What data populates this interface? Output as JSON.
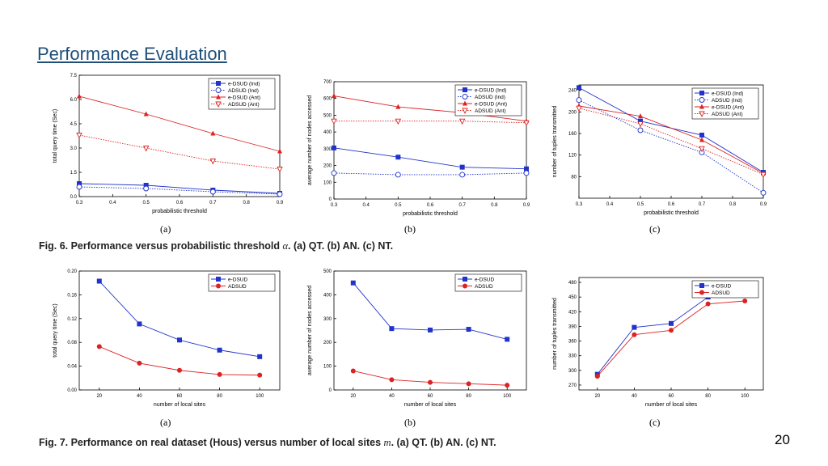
{
  "slide": {
    "title": "Performance Evaluation",
    "page_number": "20",
    "fig6_caption_pre": "Fig. 6. Performance versus probabilistic threshold",
    "fig6_caption_var": "α",
    "fig6_caption_post": ". (a) QT. (b) AN. (c) NT.",
    "fig7_caption_pre": "Fig. 7. Performance on real dataset (Hous) versus number of local sites",
    "fig7_caption_var": "m",
    "fig7_caption_post": ". (a) QT. (b) AN. (c) NT."
  },
  "chart_data": [
    {
      "id": "fig6a",
      "sublabel": "(a)",
      "type": "line",
      "xlabel": "probabilistic threshold",
      "ylabel": "total query time (Sec)",
      "xlim": [
        0.3,
        0.9
      ],
      "ylim": [
        0,
        7.5
      ],
      "xticks": [
        "0.3",
        "0.4",
        "0.5",
        "0.6",
        "0.7",
        "0.8",
        "0.9"
      ],
      "yticks": [
        "0.0",
        "1.5",
        "3.0",
        "4.5",
        "6.0",
        "7.5"
      ],
      "legend_position": "top-right",
      "grid": false,
      "x": [
        0.3,
        0.5,
        0.7,
        0.9
      ],
      "series": [
        {
          "name": "e-DSUD (Ind)",
          "values": [
            0.8,
            0.7,
            0.4,
            0.2
          ],
          "color": "#2233cc",
          "marker": "square",
          "dash": false
        },
        {
          "name": "ADSUD (Ind)",
          "values": [
            0.6,
            0.5,
            0.3,
            0.15
          ],
          "color": "#2233cc",
          "marker": "circle-open",
          "dash": true
        },
        {
          "name": "e-DSUD (Ant)",
          "values": [
            6.2,
            5.1,
            3.9,
            2.8
          ],
          "color": "#dd2222",
          "marker": "triangle",
          "dash": false
        },
        {
          "name": "ADSUD (Ant)",
          "values": [
            3.8,
            3.0,
            2.2,
            1.7
          ],
          "color": "#dd2222",
          "marker": "triangle-down-open",
          "dash": true
        }
      ]
    },
    {
      "id": "fig6b",
      "sublabel": "(b)",
      "type": "line",
      "xlabel": "probabilistic threshold",
      "ylabel": "average number of nodes accessed",
      "xlim": [
        0.3,
        0.9
      ],
      "ylim": [
        0,
        700
      ],
      "xticks": [
        "0.3",
        "0.4",
        "0.5",
        "0.6",
        "0.7",
        "0.8",
        "0.9"
      ],
      "yticks": [
        "0",
        "100",
        "200",
        "300",
        "400",
        "500",
        "600",
        "700"
      ],
      "legend_position": "top-right",
      "grid": false,
      "x": [
        0.3,
        0.5,
        0.7,
        0.9
      ],
      "series": [
        {
          "name": "e-DSUD (Ind)",
          "values": [
            305,
            250,
            190,
            180
          ],
          "color": "#2233cc",
          "marker": "square",
          "dash": false
        },
        {
          "name": "ADSUD (Ind)",
          "values": [
            155,
            145,
            145,
            155
          ],
          "color": "#2233cc",
          "marker": "circle-open",
          "dash": true
        },
        {
          "name": "e-DSUD (Ant)",
          "values": [
            615,
            550,
            515,
            465
          ],
          "color": "#dd2222",
          "marker": "triangle",
          "dash": false
        },
        {
          "name": "ADSUD (Ant)",
          "values": [
            465,
            465,
            465,
            455
          ],
          "color": "#dd2222",
          "marker": "triangle-down-open",
          "dash": true
        }
      ]
    },
    {
      "id": "fig6c",
      "sublabel": "(c)",
      "type": "line",
      "xlabel": "probabilistic threshold",
      "ylabel": "number of tuples transmitted",
      "xlim": [
        0.3,
        0.9
      ],
      "ylim": [
        40,
        250
      ],
      "xticks": [
        "0.3",
        "0.4",
        "0.5",
        "0.6",
        "0.7",
        "0.8",
        "0.9"
      ],
      "yticks": [
        "80",
        "120",
        "160",
        "200",
        "240"
      ],
      "yticks_values": [
        80,
        120,
        160,
        200,
        240
      ],
      "legend_position": "top-right",
      "grid": false,
      "x": [
        0.3,
        0.5,
        0.7,
        0.9
      ],
      "series": [
        {
          "name": "e-DSUD (Ind)",
          "values": [
            245,
            183,
            157,
            88
          ],
          "color": "#2233cc",
          "marker": "square",
          "dash": false
        },
        {
          "name": "ADSUD (Ind)",
          "values": [
            222,
            166,
            125,
            50
          ],
          "color": "#2233cc",
          "marker": "circle-open",
          "dash": true
        },
        {
          "name": "e-DSUD (Ant)",
          "values": [
            211,
            192,
            148,
            86
          ],
          "color": "#dd2222",
          "marker": "triangle",
          "dash": false
        },
        {
          "name": "ADSUD (Ant)",
          "values": [
            207,
            178,
            132,
            84
          ],
          "color": "#dd2222",
          "marker": "triangle-down-open",
          "dash": true
        }
      ]
    },
    {
      "id": "fig7a",
      "sublabel": "(a)",
      "type": "line",
      "xlabel": "number of local sites",
      "ylabel": "total query time (Sec)",
      "xlim": [
        10,
        110
      ],
      "ylim": [
        0,
        0.2
      ],
      "xticks": [
        "20",
        "40",
        "60",
        "80",
        "100"
      ],
      "xticks_values": [
        20,
        40,
        60,
        80,
        100
      ],
      "yticks": [
        "0.00",
        "0.04",
        "0.08",
        "0.12",
        "0.16",
        "0.20"
      ],
      "legend_position": "top-right",
      "grid": false,
      "x": [
        20,
        40,
        60,
        80,
        100
      ],
      "series": [
        {
          "name": "e-DSUD",
          "values": [
            0.183,
            0.111,
            0.084,
            0.067,
            0.056
          ],
          "color": "#2233cc",
          "marker": "square",
          "dash": false
        },
        {
          "name": "ADSUD",
          "values": [
            0.073,
            0.045,
            0.033,
            0.026,
            0.025
          ],
          "color": "#dd2222",
          "marker": "circle",
          "dash": false
        }
      ]
    },
    {
      "id": "fig7b",
      "sublabel": "(b)",
      "type": "line",
      "xlabel": "number of local sites",
      "ylabel": "average number of nodes accessed",
      "xlim": [
        10,
        110
      ],
      "ylim": [
        0,
        500
      ],
      "xticks": [
        "20",
        "40",
        "60",
        "80",
        "100"
      ],
      "xticks_values": [
        20,
        40,
        60,
        80,
        100
      ],
      "yticks": [
        "0",
        "100",
        "200",
        "300",
        "400",
        "500"
      ],
      "legend_position": "top-right",
      "grid": false,
      "x": [
        20,
        40,
        60,
        80,
        100
      ],
      "series": [
        {
          "name": "e-DSUD",
          "values": [
            450,
            258,
            252,
            255,
            213
          ],
          "color": "#2233cc",
          "marker": "square",
          "dash": false
        },
        {
          "name": "ADSUD",
          "values": [
            80,
            43,
            32,
            26,
            20
          ],
          "color": "#dd2222",
          "marker": "circle",
          "dash": false
        }
      ]
    },
    {
      "id": "fig7c",
      "sublabel": "(c)",
      "type": "line",
      "xlabel": "number of local sites",
      "ylabel": "number of tuples transmitted",
      "xlim": [
        10,
        110
      ],
      "ylim": [
        260,
        490
      ],
      "xticks": [
        "20",
        "40",
        "60",
        "80",
        "100"
      ],
      "xticks_values": [
        20,
        40,
        60,
        80,
        100
      ],
      "yticks": [
        "270",
        "300",
        "330",
        "360",
        "390",
        "420",
        "450",
        "480"
      ],
      "yticks_values": [
        270,
        300,
        330,
        360,
        390,
        420,
        450,
        480
      ],
      "legend_position": "top-right",
      "grid": false,
      "x": [
        20,
        40,
        60,
        80,
        100
      ],
      "series": [
        {
          "name": "e-DSUD",
          "values": [
            292,
            388,
            396,
            450,
            459
          ],
          "color": "#2233cc",
          "marker": "square",
          "dash": false
        },
        {
          "name": "ADSUD",
          "values": [
            288,
            373,
            382,
            436,
            442
          ],
          "color": "#dd2222",
          "marker": "circle",
          "dash": false
        }
      ]
    }
  ]
}
